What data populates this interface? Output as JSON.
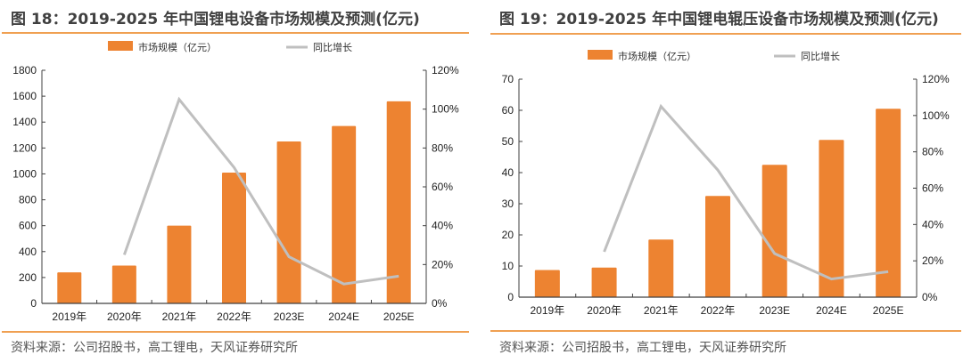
{
  "colors": {
    "bar": "#ed8331",
    "line": "#bfbfbf",
    "axis": "#404040",
    "rule": "#f0a052"
  },
  "source_text": "资料来源：公司招股书，高工锂电，天风证券研究所",
  "chart_data": [
    {
      "type": "bar",
      "title": "图 18：2019-2025 年中国锂电设备市场规模及预测(亿元)",
      "categories": [
        "2019年",
        "2020年",
        "2021年",
        "2022年",
        "2023E",
        "2024E",
        "2025E"
      ],
      "series": [
        {
          "name": "市场规模（亿元）",
          "type": "bar",
          "axis": "left",
          "values": [
            240,
            292,
            600,
            1010,
            1250,
            1370,
            1560
          ]
        },
        {
          "name": "同比增长",
          "type": "line",
          "axis": "right",
          "values": [
            null,
            0.25,
            1.05,
            0.7,
            0.24,
            0.1,
            0.14
          ]
        }
      ],
      "y_left": {
        "min": 0,
        "max": 1800,
        "step": 200,
        "ticks": [
          "0",
          "200",
          "400",
          "600",
          "800",
          "1000",
          "1200",
          "1400",
          "1600",
          "1800"
        ]
      },
      "y_right": {
        "min": 0,
        "max": 1.2,
        "step": 0.2,
        "ticks": [
          "0%",
          "20%",
          "40%",
          "60%",
          "80%",
          "100%",
          "120%"
        ]
      },
      "xlabel": "",
      "ylabel": "",
      "legend": {
        "placement": "top-center",
        "items": [
          "市场规模（亿元）",
          "同比增长"
        ]
      },
      "grid": false
    },
    {
      "type": "bar",
      "title": "图 19：2019-2025 年中国锂电辊压设备市场规模及预测(亿元)",
      "categories": [
        "2019年",
        "2020年",
        "2021年",
        "2022年",
        "2023E",
        "2024E",
        "2025E"
      ],
      "series": [
        {
          "name": "市场规模（亿元）",
          "type": "bar",
          "axis": "left",
          "values": [
            8.7,
            9.5,
            18.5,
            32.5,
            42.5,
            50.5,
            60.5
          ]
        },
        {
          "name": "同比增长",
          "type": "line",
          "axis": "right",
          "values": [
            null,
            0.25,
            1.05,
            0.7,
            0.24,
            0.1,
            0.14
          ]
        }
      ],
      "y_left": {
        "min": 0,
        "max": 70,
        "step": 10,
        "ticks": [
          "0",
          "10",
          "20",
          "30",
          "40",
          "50",
          "60",
          "70"
        ]
      },
      "y_right": {
        "min": 0,
        "max": 1.2,
        "step": 0.2,
        "ticks": [
          "0%",
          "20%",
          "40%",
          "60%",
          "80%",
          "100%",
          "120%"
        ]
      },
      "xlabel": "",
      "ylabel": "",
      "legend": {
        "placement": "top-center",
        "items": [
          "市场规模（亿元）",
          "同比增长"
        ]
      },
      "grid": false
    }
  ]
}
